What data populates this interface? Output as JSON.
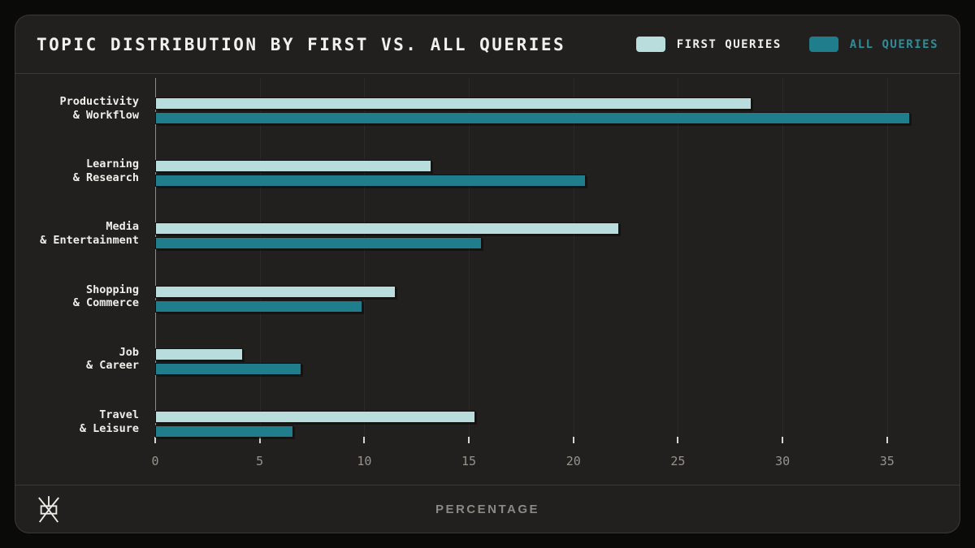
{
  "header": {
    "title": "TOPIC DISTRIBUTION BY FIRST VS. ALL QUERIES"
  },
  "footer": {
    "xlabel": "PERCENTAGE"
  },
  "colors": {
    "first_queries": "#b9dddd",
    "all_queries": "#207d8b",
    "all_queries_text": "#2f8d9a",
    "first_queries_text": "#f0eee9",
    "background": "#21201e",
    "page_background": "#0a0a09",
    "gridline": "#2b2a28"
  },
  "chart_data": {
    "type": "bar",
    "orientation": "horizontal",
    "title": "TOPIC DISTRIBUTION BY FIRST VS. ALL QUERIES",
    "categories": [
      [
        "Productivity",
        "& Workflow"
      ],
      [
        "Learning",
        "& Research"
      ],
      [
        "Media",
        "& Entertainment"
      ],
      [
        "Shopping",
        "& Commerce"
      ],
      [
        "Job",
        "& Career"
      ],
      [
        "Travel",
        "& Leisure"
      ]
    ],
    "series": [
      {
        "name": "FIRST QUERIES",
        "color": "#b9dddd",
        "values": [
          28.5,
          13.2,
          22.2,
          11.5,
          4.2,
          15.3
        ]
      },
      {
        "name": "ALL QUERIES",
        "color": "#207d8b",
        "values": [
          36.1,
          20.6,
          15.6,
          9.9,
          7.0,
          6.6
        ]
      }
    ],
    "xlabel": "PERCENTAGE",
    "ylabel": "",
    "xlim": [
      0,
      37.3
    ],
    "xticks": [
      0,
      5,
      10,
      15,
      20,
      25,
      30,
      35
    ],
    "grid": true,
    "legend_position": "top-right"
  }
}
